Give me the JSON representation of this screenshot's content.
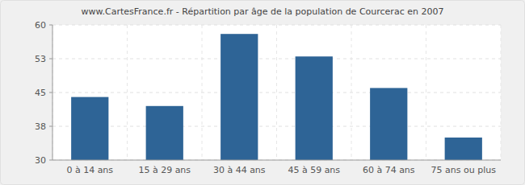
{
  "chart_data": {
    "type": "bar",
    "title": "www.CartesFrance.fr - Répartition par âge de la population de Courcerac en 2007",
    "categories": [
      "0 à 14 ans",
      "15 à 29 ans",
      "30 à 44 ans",
      "45 à 59 ans",
      "60 à 74 ans",
      "75 ans ou plus"
    ],
    "values": [
      44,
      42,
      58,
      53,
      46,
      35
    ],
    "color": "#2e6496",
    "ylim": [
      30,
      60
    ],
    "yticks": [
      30,
      {
        "value": 37.5,
        "label": "38"
      },
      45,
      {
        "value": 52.5,
        "label": "53"
      },
      60
    ],
    "grid": true
  }
}
